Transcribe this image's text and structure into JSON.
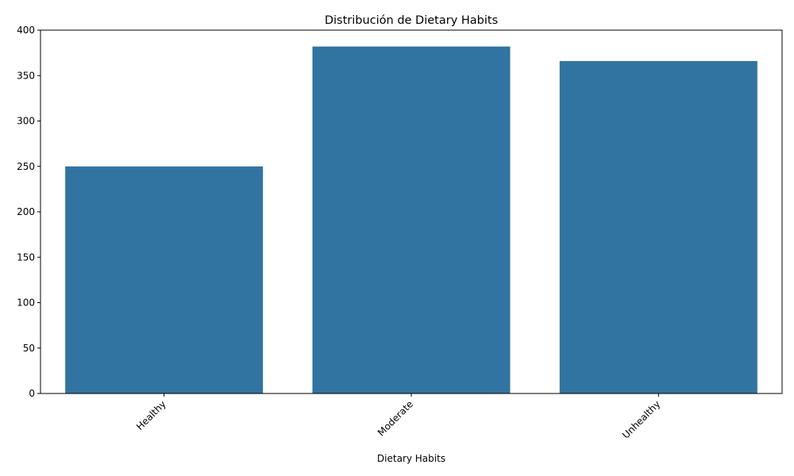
{
  "chart_data": {
    "type": "bar",
    "title": "Distribución de Dietary Habits",
    "xlabel": "Dietary Habits",
    "ylabel": "",
    "categories": [
      "Healthy",
      "Moderate",
      "Unhealthy"
    ],
    "values": [
      250,
      382,
      366
    ],
    "ylim": [
      0,
      400
    ],
    "yticks": [
      0,
      50,
      100,
      150,
      200,
      250,
      300,
      350,
      400
    ],
    "grid": false,
    "legend": "none",
    "bar_color": "#3274a1"
  }
}
